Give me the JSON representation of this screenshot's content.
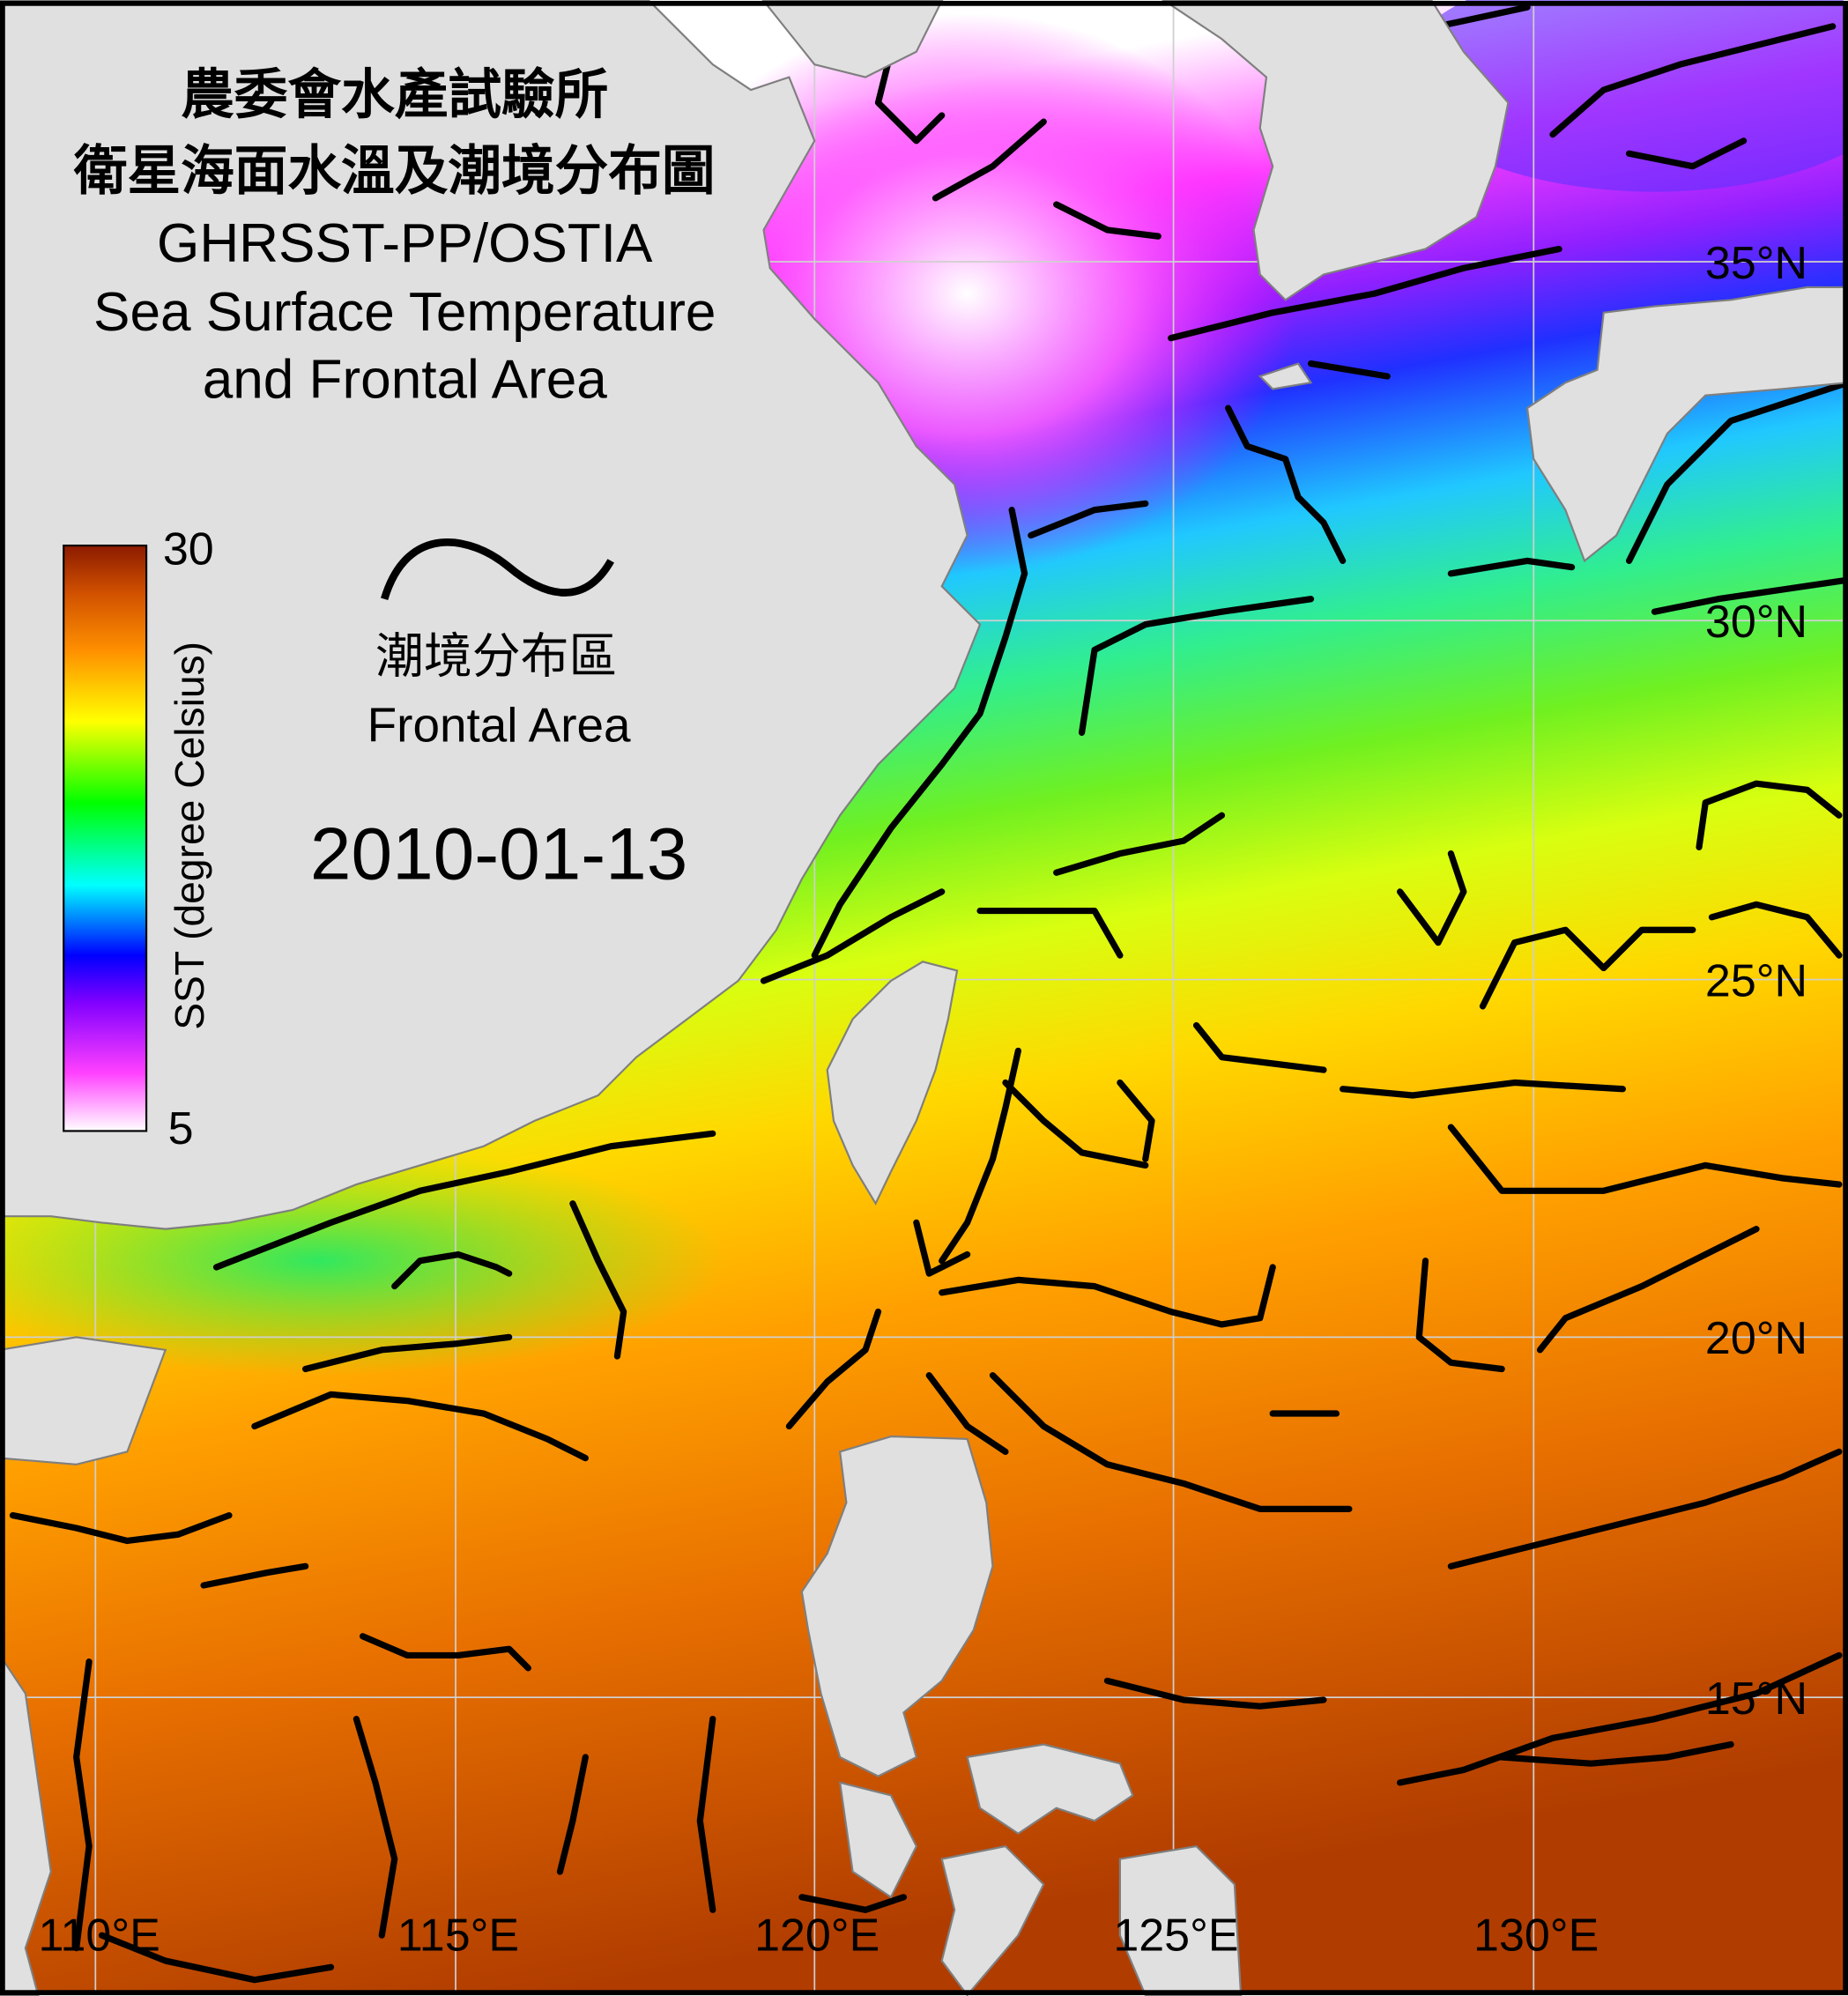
{
  "title": {
    "zh_line1": "農委會水產試驗所",
    "zh_line2": "衛星海面水溫及潮境分布圖",
    "en_line1": "GHRSST-PP/OSTIA",
    "en_line2": "Sea Surface Temperature",
    "en_line3": "and Frontal Area"
  },
  "colorbar": {
    "label": "SST (degree Celsius)",
    "max_label": "30",
    "min_label": "5",
    "min": 5,
    "max": 30,
    "colors": [
      "#ffffff",
      "#ff00ff",
      "#8000ff",
      "#0000ff",
      "#00ffff",
      "#00ff00",
      "#ffff00",
      "#ff8000",
      "#c04000",
      "#8b1a00"
    ]
  },
  "legend": {
    "zh_label": "潮境分布區",
    "en_label": "Frontal Area",
    "symbol": "black-wavy-line"
  },
  "date": "2010-01-13",
  "latitude_labels": [
    "35°N",
    "30°N",
    "25°N",
    "20°N",
    "15°N"
  ],
  "longitude_labels": [
    "110°E",
    "115°E",
    "120°E",
    "125°E",
    "130°E"
  ],
  "colors": {
    "land": "#e0e0e0",
    "front": "#000000",
    "frame": "#000000"
  }
}
